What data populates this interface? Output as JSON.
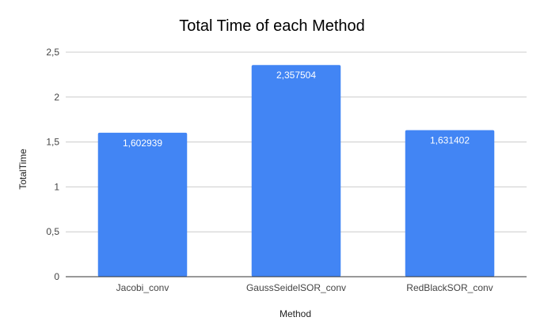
{
  "chart_data": {
    "type": "bar",
    "title": "Total Time of each Method",
    "xlabel": "Method",
    "ylabel": "TotalTime",
    "categories": [
      "Jacobi_conv",
      "GaussSeidelSOR_conv",
      "RedBlackSOR_conv"
    ],
    "values": [
      1.602939,
      2.357504,
      1.631402
    ],
    "value_labels": [
      "1,602939",
      "2,357504",
      "1,631402"
    ],
    "ylim": [
      0,
      2.5
    ],
    "yticks": [
      0,
      0.5,
      1,
      1.5,
      2,
      2.5
    ],
    "ytick_labels": [
      "0",
      "0,5",
      "1",
      "1,5",
      "2",
      "2,5"
    ],
    "grid": true,
    "bar_color": "#4285f4"
  }
}
